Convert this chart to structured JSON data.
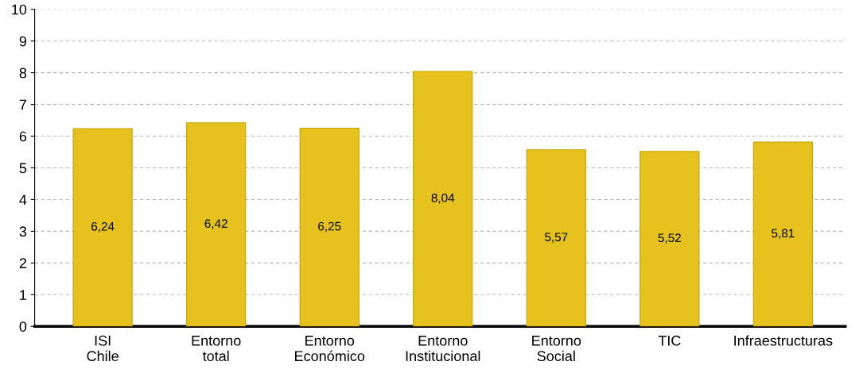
{
  "chart_data": {
    "type": "bar",
    "categories": [
      "ISI\nChile",
      "Entorno\ntotal",
      "Entorno\nEconómico",
      "Entorno\nInstitucional",
      "Entorno\nSocial",
      "TIC",
      "Infraestructuras"
    ],
    "values": [
      6.24,
      6.42,
      6.25,
      8.04,
      5.57,
      5.52,
      5.81
    ],
    "value_labels": [
      "6,24",
      "6,42",
      "6,25",
      "8,04",
      "5,57",
      "5,52",
      "5,81"
    ],
    "color": "#e6c21e",
    "ylim": [
      0,
      10
    ],
    "yticks": [
      0,
      1,
      2,
      3,
      4,
      5,
      6,
      7,
      8,
      9,
      10
    ],
    "grid": "y",
    "legend": false
  }
}
